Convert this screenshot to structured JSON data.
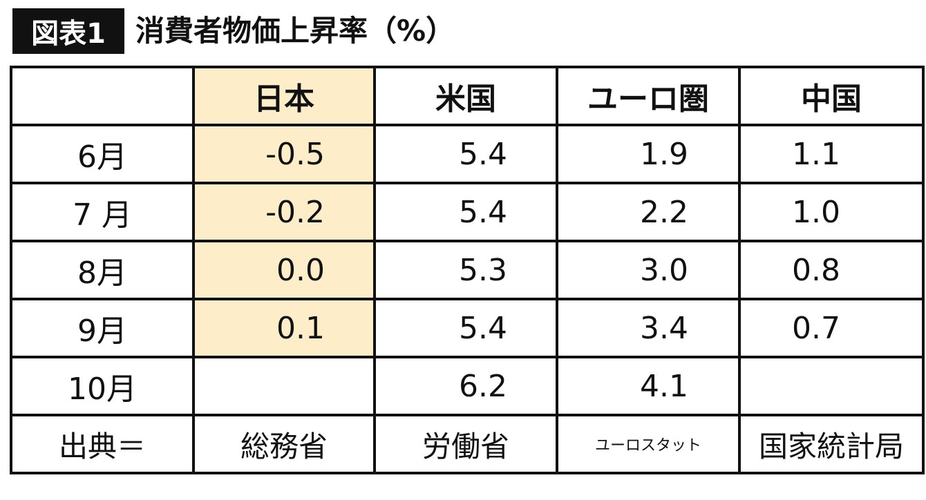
{
  "header": {
    "badge": "図表1",
    "title": "消費者物価上昇率（%）"
  },
  "table": {
    "columns": [
      "日本",
      "米国",
      "ユーロ圏",
      "中国"
    ],
    "rows": [
      [
        "6月",
        "-0.5",
        "5.4",
        "1.9",
        "1.1"
      ],
      [
        "7 月",
        "-0.2",
        "5.4",
        "2.2",
        "1.0"
      ],
      [
        "8月",
        "0.0",
        "5.3",
        "3.0",
        "0.8"
      ],
      [
        "9月",
        "0.1",
        "5.4",
        "3.4",
        "0.7"
      ],
      [
        "10月",
        null,
        "6.2",
        "4.1",
        null
      ]
    ],
    "source": [
      "出典＝",
      "総務省",
      "労働省",
      "ユーロスタット",
      "国家統計局"
    ]
  }
}
